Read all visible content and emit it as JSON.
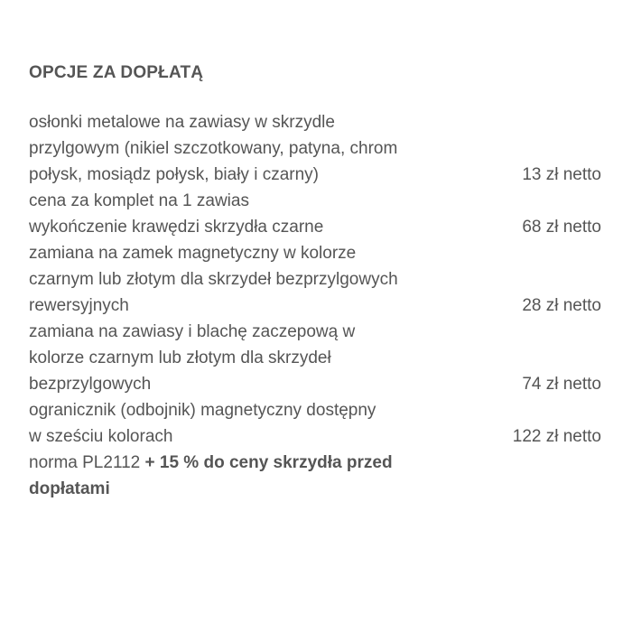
{
  "heading": "OPCJE ZA DOPŁATĄ",
  "lines": [
    {
      "text": "osłonki metalowe na zawiasy w skrzydle",
      "price": ""
    },
    {
      "text": "przylgowym (nikiel szczotkowany, patyna, chrom",
      "price": ""
    },
    {
      "text": "połysk, mosiądz połysk, biały i czarny)",
      "price": "13 zł netto"
    },
    {
      "text": "cena za komplet na 1 zawias",
      "price": ""
    },
    {
      "text": "wykończenie krawędzi skrzydła czarne",
      "price": "68 zł netto"
    },
    {
      "text": "zamiana na zamek magnetyczny w kolorze",
      "price": ""
    },
    {
      "text": "czarnym lub złotym dla skrzydeł bezprzylgowych",
      "price": ""
    },
    {
      "text": "rewersyjnych",
      "price": "28 zł netto"
    },
    {
      "text": "zamiana na zawiasy i blachę zaczepową w",
      "price": ""
    },
    {
      "text": "kolorze czarnym lub złotym dla skrzydeł",
      "price": ""
    },
    {
      "text": "bezprzylgowych",
      "price": "74 zł netto"
    },
    {
      "text": "ogranicznik (odbojnik) magnetyczny dostępny",
      "price": ""
    },
    {
      "text": "w sześciu kolorach",
      "price": "122 zł netto"
    }
  ],
  "norma": {
    "text": "norma PL2112 ",
    "bold_line1": "+ 15 % do ceny skrzydła przed",
    "bold_line2": "dopłatami"
  }
}
